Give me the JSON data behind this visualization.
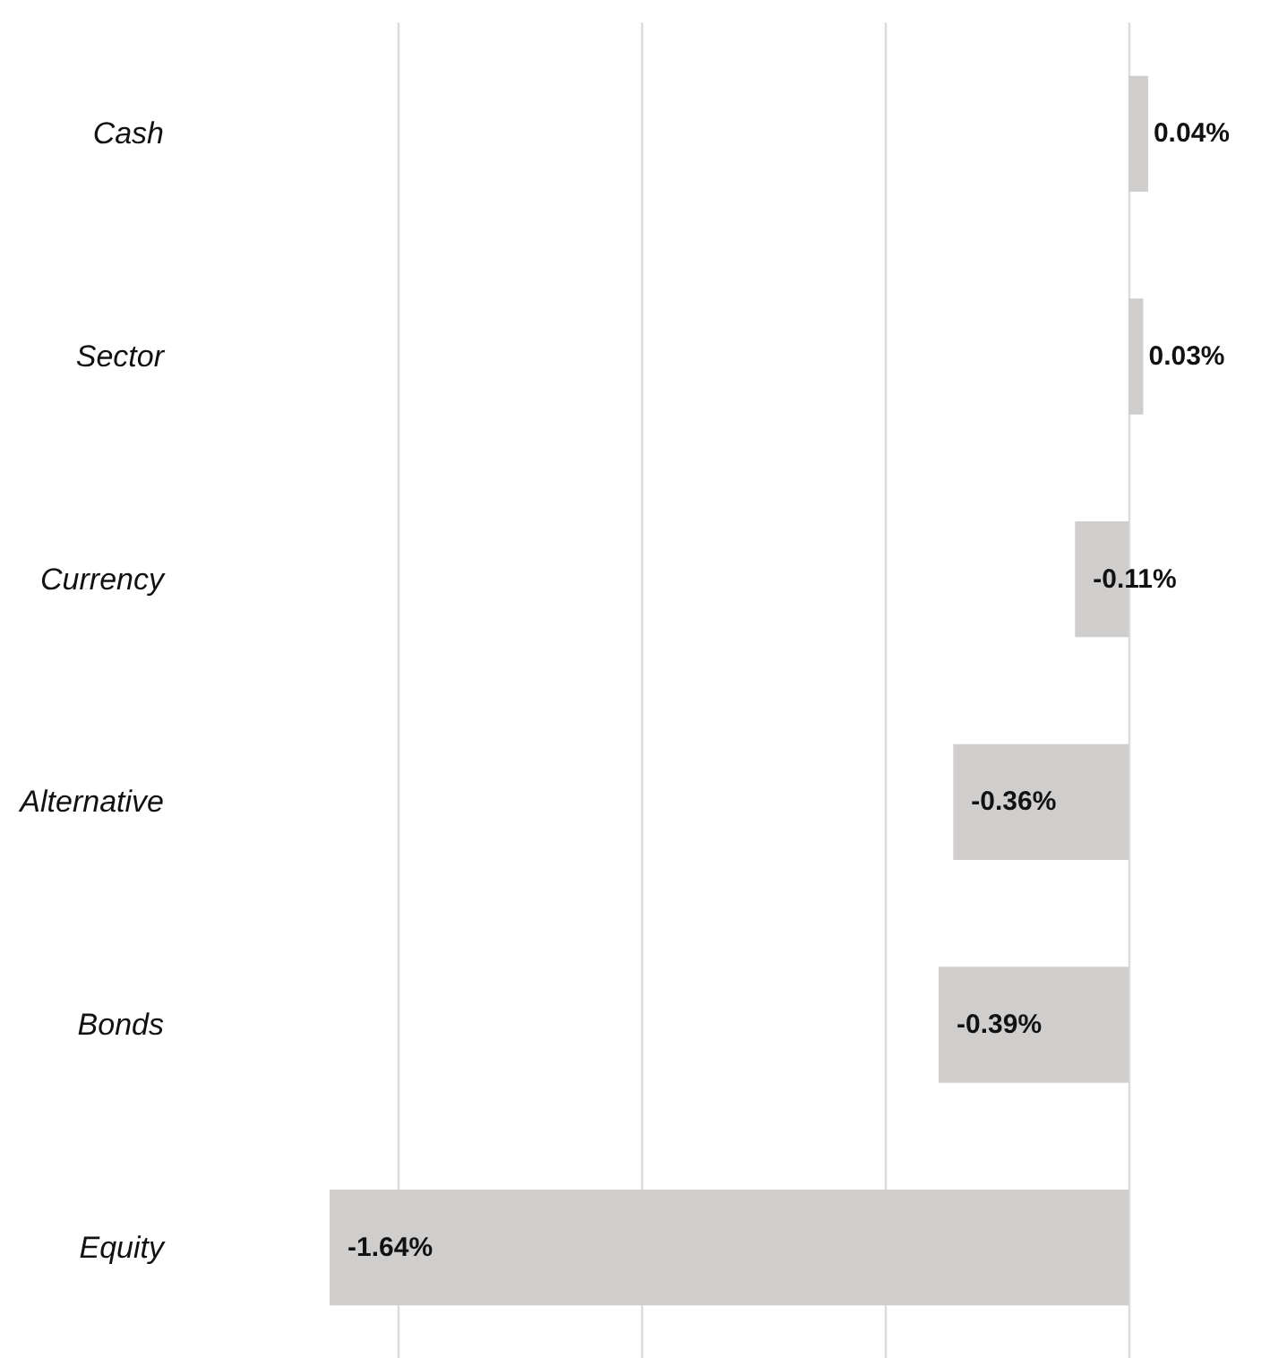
{
  "chart_data": {
    "type": "bar",
    "orientation": "horizontal",
    "categories": [
      "Cash",
      "Sector",
      "Currency",
      "Alternative",
      "Bonds",
      "Equity"
    ],
    "values": [
      0.04,
      0.03,
      -0.11,
      -0.36,
      -0.39,
      -1.64
    ],
    "value_labels": [
      "0.04%",
      "0.03%",
      "-0.11%",
      "-0.36%",
      "-0.39%",
      "-1.64%"
    ],
    "color": "#d0cdcd",
    "grid": "x",
    "tick_labels": "y"
  }
}
